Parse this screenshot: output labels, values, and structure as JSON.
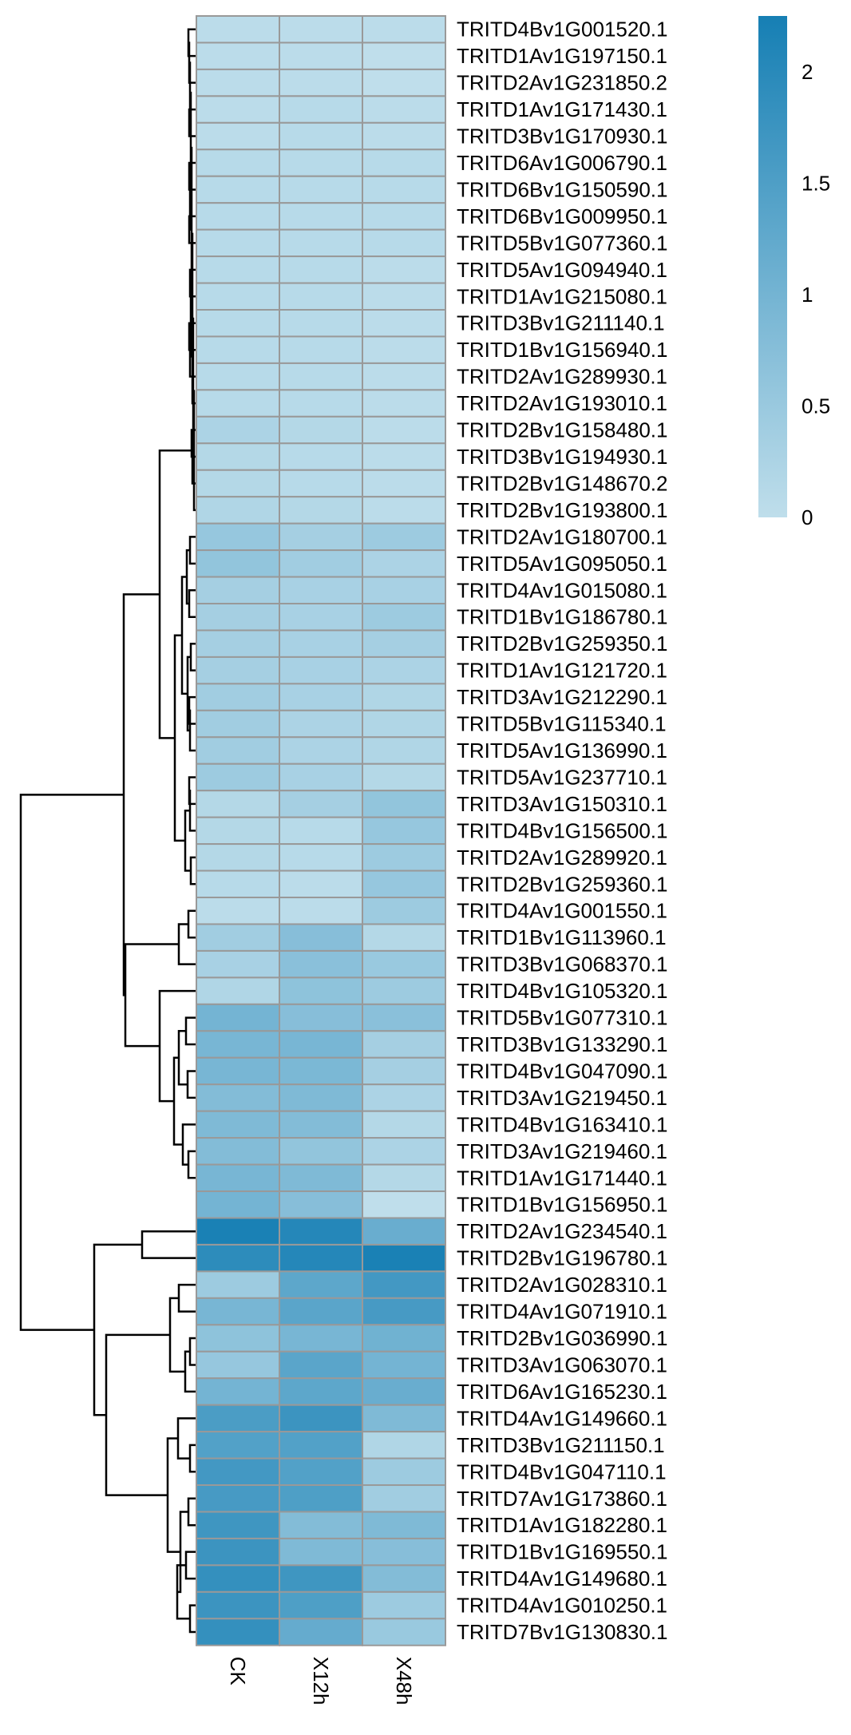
{
  "chart_data": {
    "type": "heatmap",
    "title": "",
    "xlabel": "",
    "ylabel": "",
    "columns": [
      "CK",
      "X12h",
      "X48h"
    ],
    "rows": [
      {
        "gene": "TRITD4Bv1G001520.1",
        "values": [
          0.05,
          0.05,
          0.05
        ]
      },
      {
        "gene": "TRITD1Av1G197150.1",
        "values": [
          0.05,
          0.05,
          0.0
        ]
      },
      {
        "gene": "TRITD2Av1G231850.2",
        "values": [
          0.05,
          0.05,
          0.0
        ]
      },
      {
        "gene": "TRITD1Av1G171430.1",
        "values": [
          0.05,
          0.1,
          0.05
        ]
      },
      {
        "gene": "TRITD3Bv1G170930.1",
        "values": [
          0.05,
          0.1,
          0.05
        ]
      },
      {
        "gene": "TRITD6Av1G006790.1",
        "values": [
          0.1,
          0.1,
          0.1
        ]
      },
      {
        "gene": "TRITD6Bv1G150590.1",
        "values": [
          0.1,
          0.1,
          0.1
        ]
      },
      {
        "gene": "TRITD6Bv1G009950.1",
        "values": [
          0.1,
          0.1,
          0.1
        ]
      },
      {
        "gene": "TRITD5Bv1G077360.1",
        "values": [
          0.1,
          0.1,
          0.1
        ]
      },
      {
        "gene": "TRITD5Av1G094940.1",
        "values": [
          0.1,
          0.1,
          0.05
        ]
      },
      {
        "gene": "TRITD1Av1G215080.1",
        "values": [
          0.1,
          0.1,
          0.05
        ]
      },
      {
        "gene": "TRITD3Bv1G211140.1",
        "values": [
          0.1,
          0.1,
          0.05
        ]
      },
      {
        "gene": "TRITD1Bv1G156940.1",
        "values": [
          0.1,
          0.1,
          0.05
        ]
      },
      {
        "gene": "TRITD2Av1G289930.1",
        "values": [
          0.1,
          0.1,
          0.05
        ]
      },
      {
        "gene": "TRITD2Av1G193010.1",
        "values": [
          0.1,
          0.1,
          0.05
        ]
      },
      {
        "gene": "TRITD2Bv1G158480.1",
        "values": [
          0.25,
          0.15,
          0.05
        ]
      },
      {
        "gene": "TRITD3Bv1G194930.1",
        "values": [
          0.15,
          0.1,
          0.05
        ]
      },
      {
        "gene": "TRITD2Bv1G148670.2",
        "values": [
          0.15,
          0.1,
          0.05
        ]
      },
      {
        "gene": "TRITD2Bv1G193800.1",
        "values": [
          0.2,
          0.15,
          0.05
        ]
      },
      {
        "gene": "TRITD2Av1G180700.1",
        "values": [
          0.55,
          0.35,
          0.45
        ]
      },
      {
        "gene": "TRITD5Av1G095050.1",
        "values": [
          0.6,
          0.4,
          0.25
        ]
      },
      {
        "gene": "TRITD4Av1G015080.1",
        "values": [
          0.35,
          0.3,
          0.3
        ]
      },
      {
        "gene": "TRITD1Bv1G186780.1",
        "values": [
          0.35,
          0.3,
          0.45
        ]
      },
      {
        "gene": "TRITD2Bv1G259350.1",
        "values": [
          0.35,
          0.3,
          0.35
        ]
      },
      {
        "gene": "TRITD1Av1G121720.1",
        "values": [
          0.35,
          0.3,
          0.25
        ]
      },
      {
        "gene": "TRITD3Av1G212290.1",
        "values": [
          0.4,
          0.3,
          0.2
        ]
      },
      {
        "gene": "TRITD5Bv1G115340.1",
        "values": [
          0.4,
          0.25,
          0.2
        ]
      },
      {
        "gene": "TRITD5Av1G136990.1",
        "values": [
          0.4,
          0.25,
          0.2
        ]
      },
      {
        "gene": "TRITD5Av1G237710.1",
        "values": [
          0.45,
          0.3,
          0.15
        ]
      },
      {
        "gene": "TRITD3Av1G150310.1",
        "values": [
          0.15,
          0.35,
          0.6
        ]
      },
      {
        "gene": "TRITD4Bv1G156500.1",
        "values": [
          0.15,
          0.1,
          0.55
        ]
      },
      {
        "gene": "TRITD2Av1G289920.1",
        "values": [
          0.15,
          0.1,
          0.45
        ]
      },
      {
        "gene": "TRITD2Bv1G259360.1",
        "values": [
          0.1,
          0.05,
          0.55
        ]
      },
      {
        "gene": "TRITD4Av1G001550.1",
        "values": [
          0.05,
          0.05,
          0.45
        ]
      },
      {
        "gene": "TRITD1Bv1G113960.1",
        "values": [
          0.4,
          0.75,
          0.15
        ]
      },
      {
        "gene": "TRITD3Bv1G068370.1",
        "values": [
          0.3,
          0.7,
          0.5
        ]
      },
      {
        "gene": "TRITD4Bv1G105320.1",
        "values": [
          0.2,
          0.65,
          0.45
        ]
      },
      {
        "gene": "TRITD5Bv1G077310.1",
        "values": [
          1.0,
          0.75,
          0.7
        ]
      },
      {
        "gene": "TRITD3Bv1G133290.1",
        "values": [
          0.95,
          0.95,
          0.35
        ]
      },
      {
        "gene": "TRITD4Bv1G047090.1",
        "values": [
          0.95,
          0.9,
          0.35
        ]
      },
      {
        "gene": "TRITD3Av1G219450.1",
        "values": [
          0.8,
          0.85,
          0.25
        ]
      },
      {
        "gene": "TRITD4Bv1G163410.1",
        "values": [
          0.85,
          0.8,
          0.15
        ]
      },
      {
        "gene": "TRITD3Av1G219460.1",
        "values": [
          0.8,
          0.6,
          0.25
        ]
      },
      {
        "gene": "TRITD1Av1G171440.1",
        "values": [
          0.95,
          0.85,
          0.15
        ]
      },
      {
        "gene": "TRITD1Bv1G156950.1",
        "values": [
          1.0,
          0.75,
          0.0
        ]
      },
      {
        "gene": "TRITD2Av1G234540.1",
        "values": [
          2.2,
          2.05,
          1.15
        ]
      },
      {
        "gene": "TRITD2Bv1G196780.1",
        "values": [
          1.95,
          2.05,
          2.2
        ]
      },
      {
        "gene": "TRITD2Av1G028310.1",
        "values": [
          0.45,
          1.3,
          1.65
        ]
      },
      {
        "gene": "TRITD4Av1G071910.1",
        "values": [
          0.95,
          1.35,
          1.6
        ]
      },
      {
        "gene": "TRITD2Bv1G036990.1",
        "values": [
          0.65,
          0.95,
          1.05
        ]
      },
      {
        "gene": "TRITD3Av1G063070.1",
        "values": [
          0.55,
          1.35,
          1.0
        ]
      },
      {
        "gene": "TRITD6Av1G165230.1",
        "values": [
          1.0,
          1.3,
          1.15
        ]
      },
      {
        "gene": "TRITD4Av1G149660.1",
        "values": [
          1.55,
          1.75,
          0.85
        ]
      },
      {
        "gene": "TRITD3Bv1G211150.1",
        "values": [
          1.45,
          1.45,
          0.2
        ]
      },
      {
        "gene": "TRITD4Bv1G047110.1",
        "values": [
          1.65,
          1.45,
          0.45
        ]
      },
      {
        "gene": "TRITD7Av1G173860.1",
        "values": [
          1.6,
          1.5,
          0.4
        ]
      },
      {
        "gene": "TRITD1Av1G182280.1",
        "values": [
          1.7,
          0.8,
          0.85
        ]
      },
      {
        "gene": "TRITD1Bv1G169550.1",
        "values": [
          1.75,
          0.85,
          0.75
        ]
      },
      {
        "gene": "TRITD4Av1G149680.1",
        "values": [
          1.85,
          1.7,
          0.8
        ]
      },
      {
        "gene": "TRITD4Av1G010250.1",
        "values": [
          1.75,
          1.5,
          0.45
        ]
      },
      {
        "gene": "TRITD7Bv1G130830.1",
        "values": [
          1.85,
          1.2,
          0.5
        ]
      }
    ],
    "color_scale": {
      "min": 0,
      "max": 2.25,
      "low_color": "#bfdeeb",
      "high_color": "#167fb4",
      "ticks": [
        {
          "value": 0,
          "label": "0"
        },
        {
          "value": 0.5,
          "label": "0.5"
        },
        {
          "value": 1,
          "label": "1"
        },
        {
          "value": 1.5,
          "label": "1.5"
        },
        {
          "value": 2,
          "label": "2"
        }
      ]
    },
    "dendrogram": "rows clustered (hierarchical, left side)",
    "grid": true,
    "cell_border_color": "#999999",
    "legend_placement": "top-right"
  }
}
